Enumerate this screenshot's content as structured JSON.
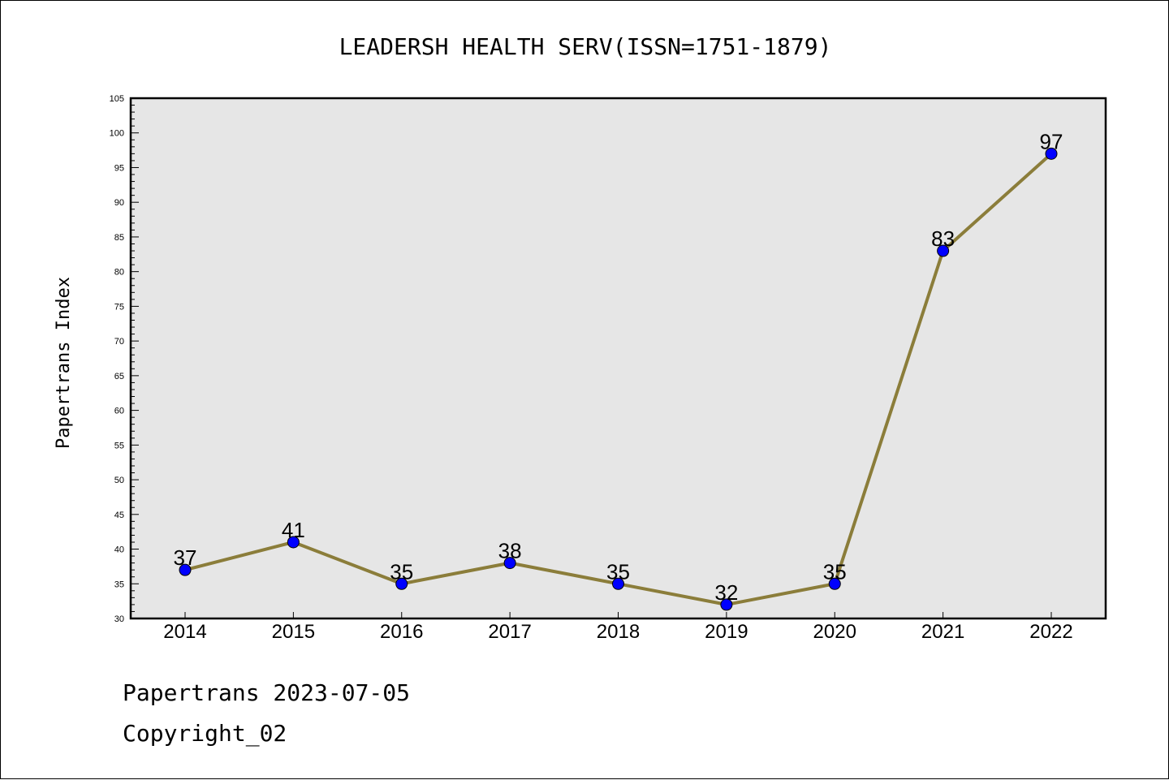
{
  "chart_data": {
    "type": "line",
    "title": "LEADERSH HEALTH SERV(ISSN=1751-1879)",
    "xlabel": "",
    "ylabel": "Papertrans Index",
    "categories": [
      "2014",
      "2015",
      "2016",
      "2017",
      "2018",
      "2019",
      "2020",
      "2021",
      "2022"
    ],
    "values": [
      37,
      41,
      35,
      38,
      35,
      32,
      35,
      83,
      97
    ],
    "ylim": [
      30,
      105
    ],
    "yticks": [
      "30",
      "35",
      "40",
      "45",
      "50",
      "55",
      "60",
      "65",
      "70",
      "75",
      "80",
      "85",
      "90",
      "95",
      "100",
      "105"
    ],
    "grid": false,
    "colors": {
      "line": "#8B7D3A",
      "marker": "#0000FF",
      "plot_background": "#E6E6E6"
    }
  },
  "footer": {
    "date_text": "Papertrans 2023-07-05",
    "copyright_text": "Copyright_02"
  }
}
